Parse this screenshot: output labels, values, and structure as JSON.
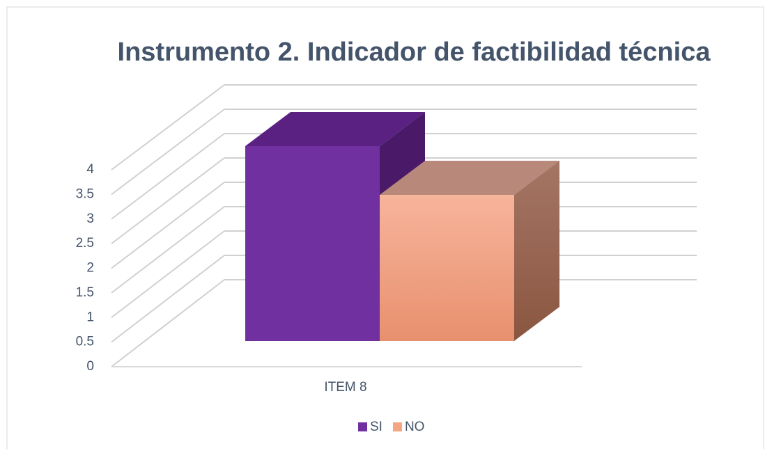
{
  "chart_data": {
    "type": "bar3d",
    "title": "Instrumento 2. Indicador de factibilidad técnica",
    "categories": [
      "ITEM 8"
    ],
    "series": [
      {
        "name": "SI",
        "color": "#7030a0",
        "values": [
          4
        ]
      },
      {
        "name": "NO",
        "color": "#f4a582",
        "values": [
          3
        ]
      }
    ],
    "ylim": [
      0,
      4
    ],
    "yticks": [
      0,
      0.5,
      1,
      1.5,
      2,
      2.5,
      3,
      3.5,
      4
    ],
    "grid": true,
    "legend": "bottom"
  }
}
